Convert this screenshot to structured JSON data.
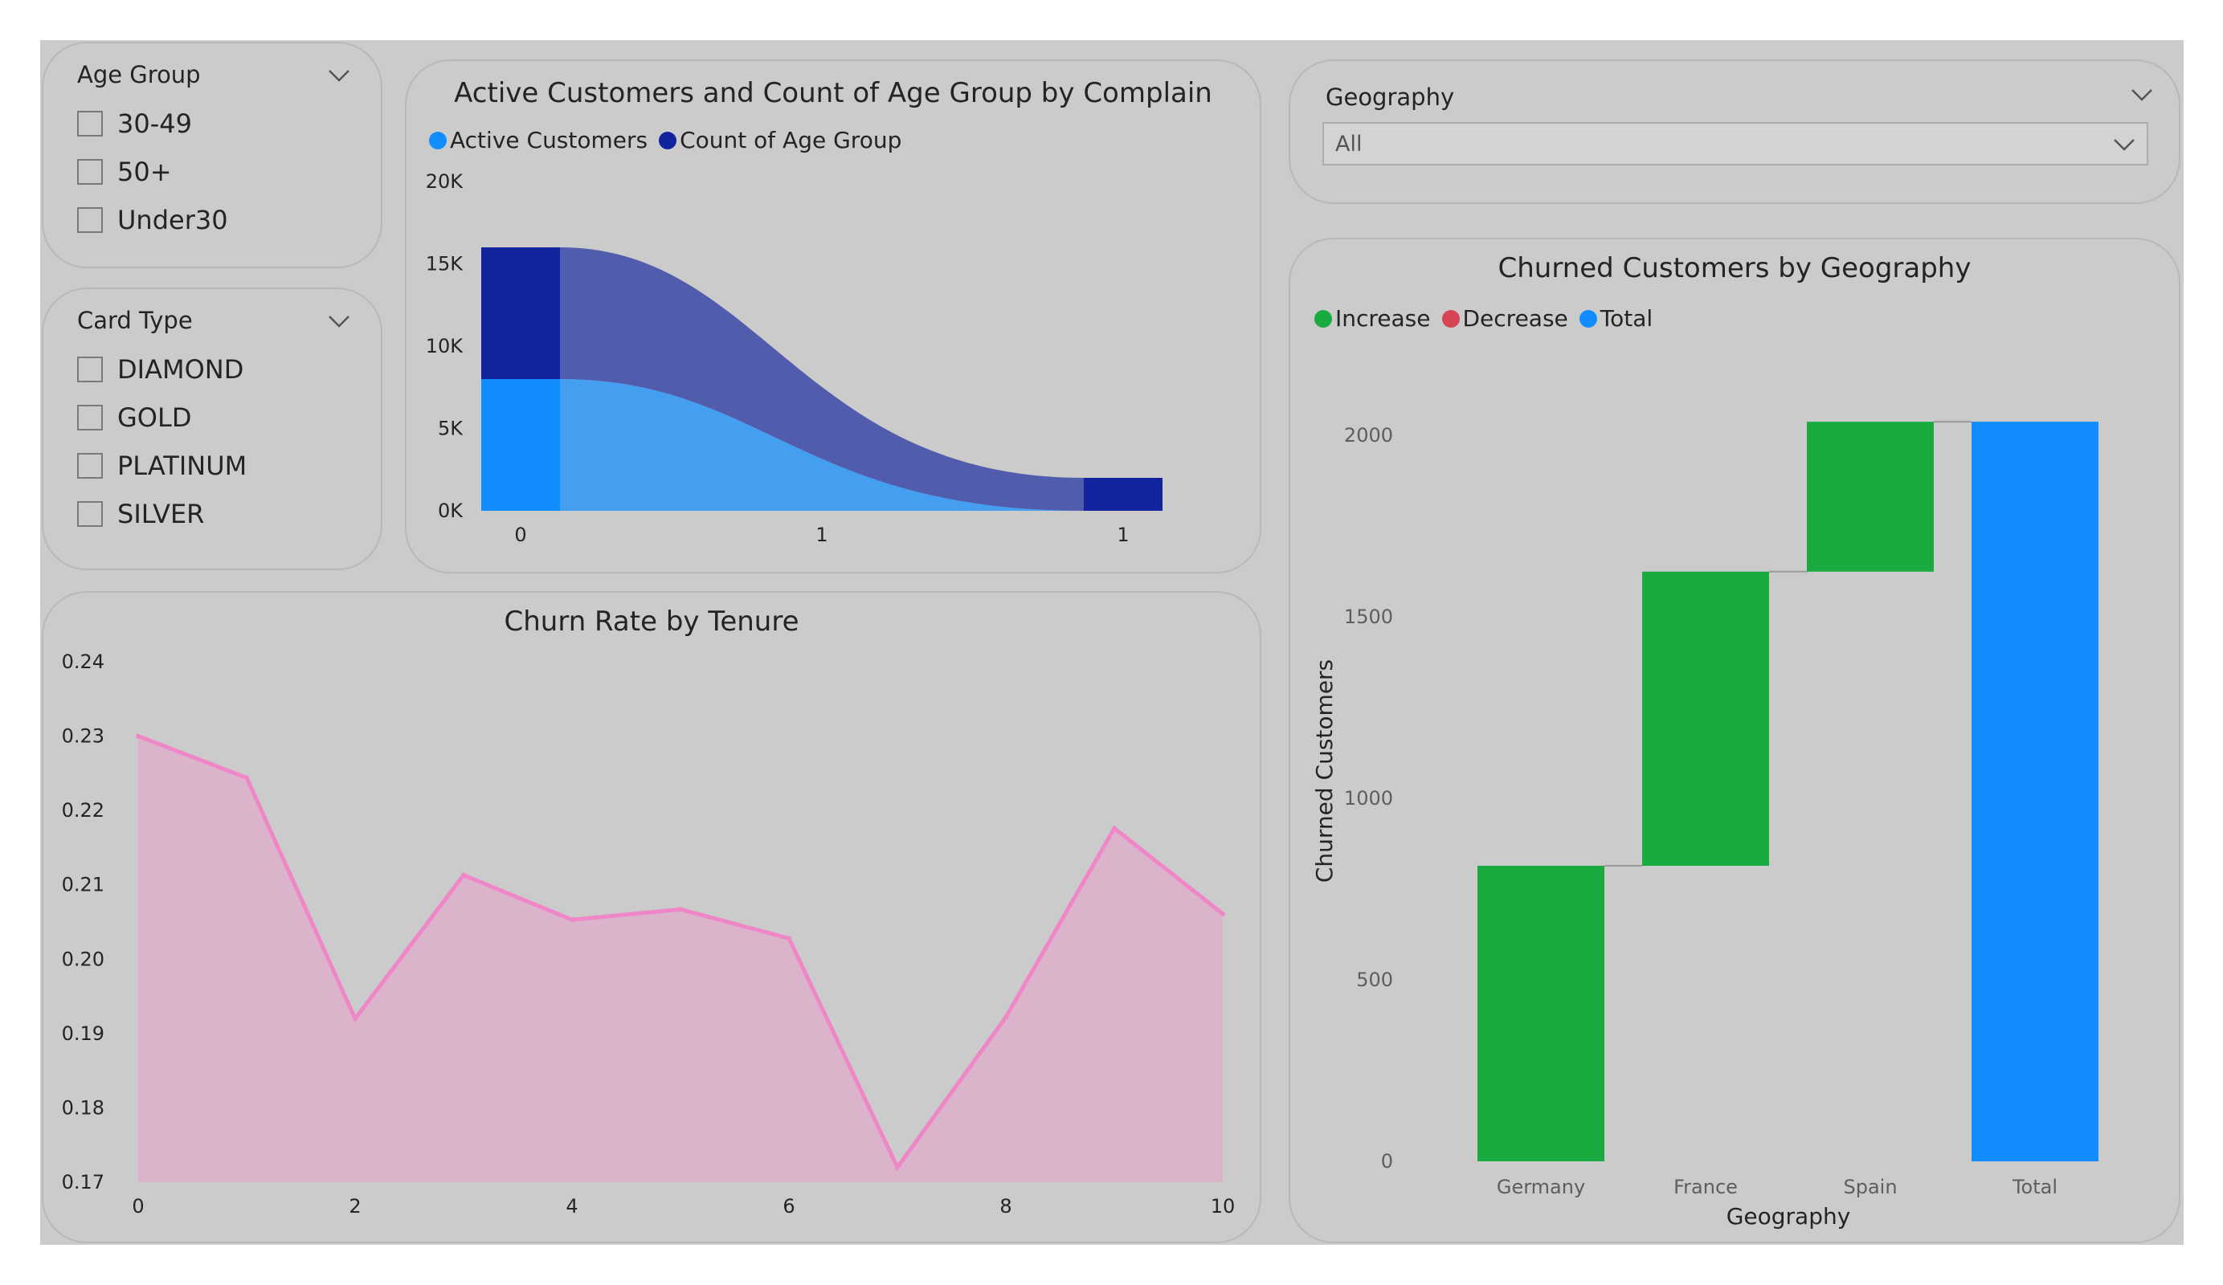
{
  "slicers": {
    "age_group": {
      "title": "Age Group",
      "options": [
        "30-49",
        "50+",
        "Under30"
      ]
    },
    "card_type": {
      "title": "Card Type",
      "options": [
        "DIAMOND",
        "GOLD",
        "PLATINUM",
        "SILVER"
      ]
    },
    "geography": {
      "title": "Geography",
      "value": "All"
    }
  },
  "colors": {
    "canvas": "#cbcbcb",
    "active_customers": "#118dff",
    "count_age_group": "#12239e",
    "increase": "#1aab40",
    "decrease": "#d64554",
    "total": "#118dff",
    "churn_line": "#ef86c7",
    "churn_fill": "#dbb4cb"
  },
  "chart_data": [
    {
      "id": "active-customers",
      "type": "ribbon",
      "title": "Active Customers and Count of Age Group by Complain",
      "legend": [
        "Active Customers",
        "Count of Age Group"
      ],
      "categories": [
        "0",
        "1",
        "1"
      ],
      "series": [
        {
          "name": "Active Customers",
          "values": [
            8000,
            0,
            0
          ]
        },
        {
          "name": "Count of Age Group",
          "values": [
            8000,
            0,
            2000
          ]
        }
      ],
      "y_ticks": [
        "0K",
        "5K",
        "10K",
        "15K",
        "20K"
      ],
      "ylim": [
        0,
        20000
      ]
    },
    {
      "id": "churn-rate",
      "type": "area",
      "title": "Churn Rate by Tenure",
      "x": [
        0,
        1,
        2,
        3,
        4,
        5,
        6,
        7,
        8,
        9,
        10
      ],
      "values": [
        0.23,
        0.2244,
        0.192,
        0.2113,
        0.2053,
        0.2067,
        0.2028,
        0.172,
        0.1922,
        0.2176,
        0.2061
      ],
      "x_ticks": [
        "0",
        "2",
        "4",
        "6",
        "8",
        "10"
      ],
      "y_ticks": [
        "0.17",
        "0.18",
        "0.19",
        "0.20",
        "0.21",
        "0.22",
        "0.23",
        "0.24"
      ],
      "ylim": [
        0.17,
        0.24
      ],
      "xlim": [
        0,
        10
      ]
    },
    {
      "id": "churned-geo",
      "type": "waterfall",
      "title": "Churned Customers by Geography",
      "legend": [
        "Increase",
        "Decrease",
        "Total"
      ],
      "categories": [
        "Germany",
        "France",
        "Spain",
        "Total"
      ],
      "values": [
        814,
        810,
        413,
        2037
      ],
      "kinds": [
        "increase",
        "increase",
        "increase",
        "total"
      ],
      "xlabel": "Geography",
      "ylabel": "Churned Customers",
      "y_ticks": [
        "0",
        "500",
        "1000",
        "1500",
        "2000"
      ],
      "ylim": [
        0,
        2150
      ]
    }
  ]
}
